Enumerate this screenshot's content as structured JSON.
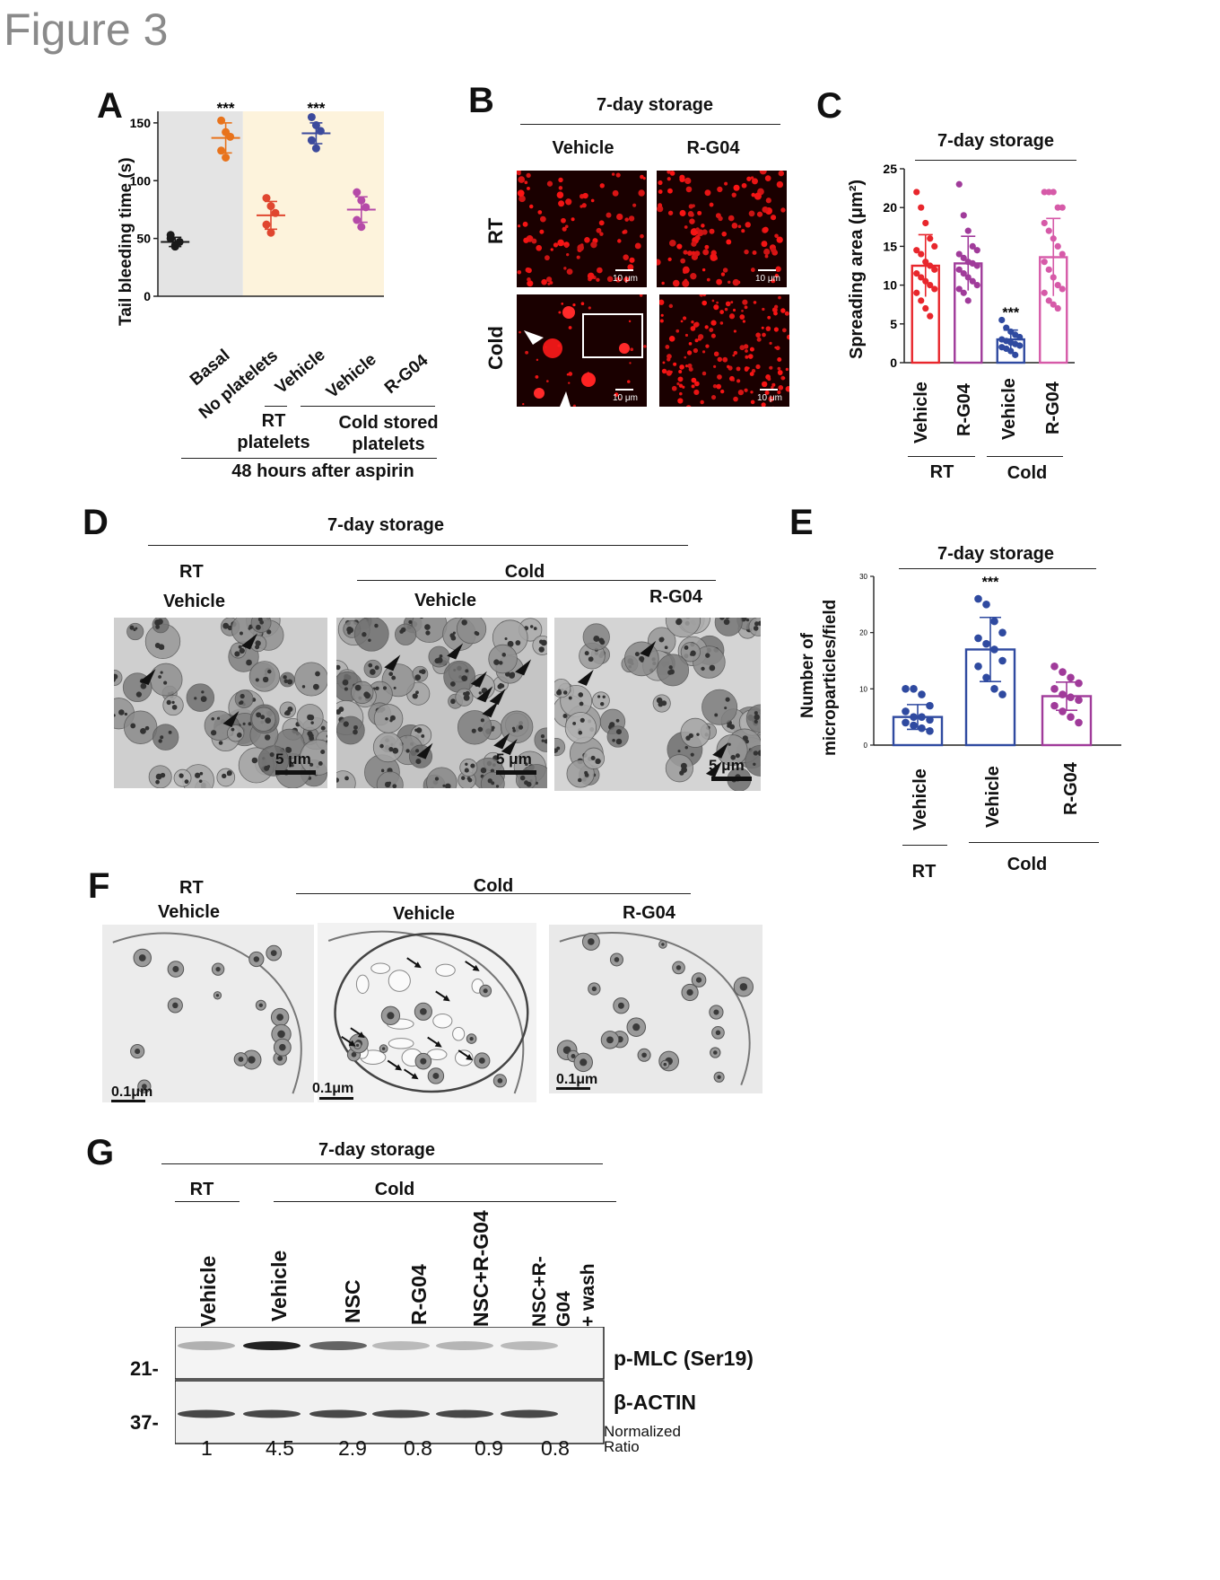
{
  "figure_title": "Figure 3",
  "panel_letters": [
    "A",
    "B",
    "C",
    "D",
    "E",
    "F",
    "G"
  ],
  "common": {
    "storage": "7-day storage",
    "rt": "RT",
    "cold": "Cold",
    "vehicle": "Vehicle",
    "rg04": "R-G04"
  },
  "panelA": {
    "ylabel": "Tail bleeding time (s)",
    "ticks": [
      "0",
      "50",
      "100",
      "150"
    ],
    "categories": [
      "Basal",
      "No platelets",
      "Vehicle",
      "Vehicle",
      "R-G04"
    ],
    "stars": "***",
    "group_rt": "RT\nplatelets",
    "group_rt_l1": "RT",
    "group_rt_l2": "platelets",
    "group_cold_l1": "Cold stored",
    "group_cold_l2": "platelets",
    "footer": "48 hours after aspirin"
  },
  "panelB": {
    "header": "7-day storage",
    "col1": "Vehicle",
    "col2": "R-G04",
    "row1": "RT",
    "row2": "Cold",
    "scalebar": "10 μm"
  },
  "panelC": {
    "header": "7-day storage",
    "ylabel": "Spreading area (μm²)",
    "ticks": [
      "0",
      "5",
      "10",
      "15",
      "20",
      "25"
    ],
    "categories": [
      "Vehicle",
      "R-G04",
      "Vehicle",
      "R-G04"
    ],
    "stars": "***",
    "group_rt": "RT",
    "group_cold": "Cold"
  },
  "panelD": {
    "header": "7-day storage",
    "rt": "RT",
    "cold": "Cold",
    "col1": "Vehicle",
    "col2": "Vehicle",
    "col3": "R-G04",
    "scalebar": "5 μm"
  },
  "panelE": {
    "header": "7-day storage",
    "ylabel_l1": "Number of",
    "ylabel_l2": "microparticles/field",
    "ticks": [
      "0",
      "10",
      "20",
      "30"
    ],
    "categories": [
      "Vehicle",
      "Vehicle",
      "R-G04"
    ],
    "stars": "***",
    "group_rt": "RT",
    "group_cold": "Cold"
  },
  "panelF": {
    "rt": "RT",
    "cold": "Cold",
    "col1": "Vehicle",
    "col2": "Vehicle",
    "col3": "R-G04",
    "scalebar": "0.1μm"
  },
  "panelG": {
    "header": "7-day storage",
    "rt": "RT",
    "cold": "Cold",
    "lanes": [
      "Vehicle",
      "Vehicle",
      "NSC",
      "R-G04",
      "NSC+R-G04",
      "NSC+R-G04 + wash"
    ],
    "lane6_l1": "NSC+R-",
    "lane6_l2": "G04",
    "lane6_l3": "+ wash",
    "marker1": "21-",
    "marker2": "37-",
    "band1": "p-MLC (Ser19)",
    "band2": "β-ACTIN",
    "ratios": [
      "1",
      "4.5",
      "2.9",
      "0.8",
      "0.9",
      "0.8"
    ],
    "ratio_label_l1": "Normalized",
    "ratio_label_l2": "Ratio",
    "band_colors": {
      "pmlc": "#1c1c1c",
      "actin": "#2a2a2a"
    }
  },
  "chart_data": [
    {
      "panel": "A",
      "type": "scatter",
      "ylabel": "Tail bleeding time (s)",
      "ylim": [
        0,
        160
      ],
      "categories": [
        "Basal",
        "No platelets",
        "Vehicle",
        "Vehicle",
        "R-G04"
      ],
      "colors": [
        "#1a1a1a",
        "#e8731c",
        "#e0462f",
        "#3c4a9c",
        "#b54aa8"
      ],
      "background_groups": [
        {
          "name": "RT",
          "color": "#e4e4e4"
        },
        {
          "name": "Cold",
          "color": "#fdf3dc"
        }
      ],
      "series": [
        {
          "name": "Basal",
          "values": [
            50,
            44,
            47,
            53,
            43
          ],
          "mean": 47,
          "sd": 4
        },
        {
          "name": "No platelets",
          "values": [
            152,
            142,
            138,
            126,
            120
          ],
          "mean": 137,
          "sd": 13
        },
        {
          "name": "Vehicle",
          "values": [
            85,
            78,
            72,
            62,
            55
          ],
          "mean": 70,
          "sd": 12
        },
        {
          "name": "Vehicle",
          "values": [
            155,
            148,
            143,
            135,
            128
          ],
          "mean": 141,
          "sd": 9
        },
        {
          "name": "R-G04",
          "values": [
            90,
            83,
            77,
            66,
            60
          ],
          "mean": 75,
          "sd": 11
        }
      ],
      "significance": [
        "",
        "***",
        "",
        "***",
        ""
      ]
    },
    {
      "panel": "C",
      "type": "bar",
      "ylabel": "Spreading area (μm²)",
      "ylim": [
        0,
        25
      ],
      "categories": [
        "Vehicle",
        "R-G04",
        "Vehicle",
        "R-G04"
      ],
      "colors": [
        "#e8262c",
        "#a03b9a",
        "#2f4aa0",
        "#d65aa8"
      ],
      "values": [
        12.5,
        12.8,
        3.0,
        13.6
      ],
      "sd": [
        4.0,
        3.5,
        1.2,
        5.0
      ],
      "points": [
        [
          22,
          20,
          18,
          16,
          15,
          14.5,
          14,
          13,
          12.5,
          12,
          11.5,
          11,
          10.5,
          10,
          9.5,
          9,
          8,
          7,
          6
        ],
        [
          23,
          19,
          17,
          15,
          14.5,
          14,
          13.5,
          13,
          12.8,
          12.5,
          12,
          11.5,
          11,
          10.5,
          10,
          9.5,
          9,
          8
        ],
        [
          5.5,
          4.5,
          4,
          3.6,
          3.3,
          3,
          2.8,
          2.6,
          2.4,
          2.2,
          2,
          1.8,
          1.5,
          1
        ],
        [
          22,
          22,
          22,
          20,
          20,
          18,
          17,
          16,
          15,
          14,
          13,
          12,
          11,
          10,
          9.5,
          9,
          8,
          7.5,
          7
        ]
      ],
      "significance": [
        "",
        "",
        "***",
        ""
      ]
    },
    {
      "panel": "E",
      "type": "bar",
      "ylabel": "Number of microparticles/field",
      "ylim": [
        0,
        30
      ],
      "categories": [
        "Vehicle",
        "Vehicle",
        "R-G04"
      ],
      "colors": [
        "#2f4aa0",
        "#2f4aa0",
        "#a03b9a"
      ],
      "values": [
        5.0,
        17.0,
        8.7
      ],
      "sd": [
        2.2,
        5.7,
        2.5
      ],
      "points": [
        [
          10,
          10,
          9,
          7,
          6,
          5,
          5,
          4.5,
          4,
          3.5,
          3,
          2.5
        ],
        [
          26,
          25,
          22,
          20,
          19,
          18,
          17,
          15,
          14,
          12,
          10,
          9
        ],
        [
          14,
          13,
          12,
          11,
          10,
          9,
          8.5,
          8,
          7,
          6,
          5,
          4
        ]
      ],
      "significance": [
        "",
        "***",
        ""
      ]
    }
  ]
}
